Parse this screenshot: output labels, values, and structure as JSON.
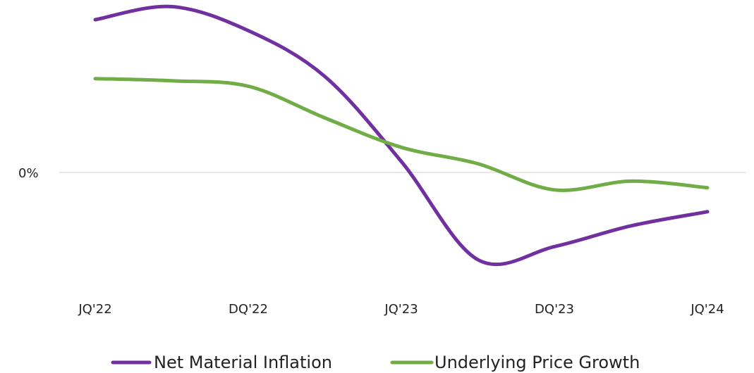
{
  "chart_data": {
    "type": "line",
    "categories": [
      "JQ'22",
      "DQ'22",
      "JQ'23",
      "DQ'23",
      "JQ'24"
    ],
    "x": [
      0,
      0.5,
      1,
      1.5,
      2,
      2.5,
      3,
      3.5,
      4
    ],
    "y_tick_labels": [
      {
        "label": "0%",
        "value": 0
      }
    ],
    "ylim": [
      -1.02,
      1.53
    ],
    "grid": false,
    "legend_position": "bottom",
    "series": [
      {
        "name": "Net Material Inflation",
        "color": "#7030A0",
        "values": [
          1.4,
          1.52,
          1.3,
          0.88,
          0.1,
          -0.8,
          -0.68,
          -0.49,
          -0.36
        ]
      },
      {
        "name": "Underlying Price Growth",
        "color": "#70AD47",
        "values": [
          0.86,
          0.84,
          0.79,
          0.5,
          0.23,
          0.08,
          -0.16,
          -0.08,
          -0.14
        ]
      }
    ]
  }
}
